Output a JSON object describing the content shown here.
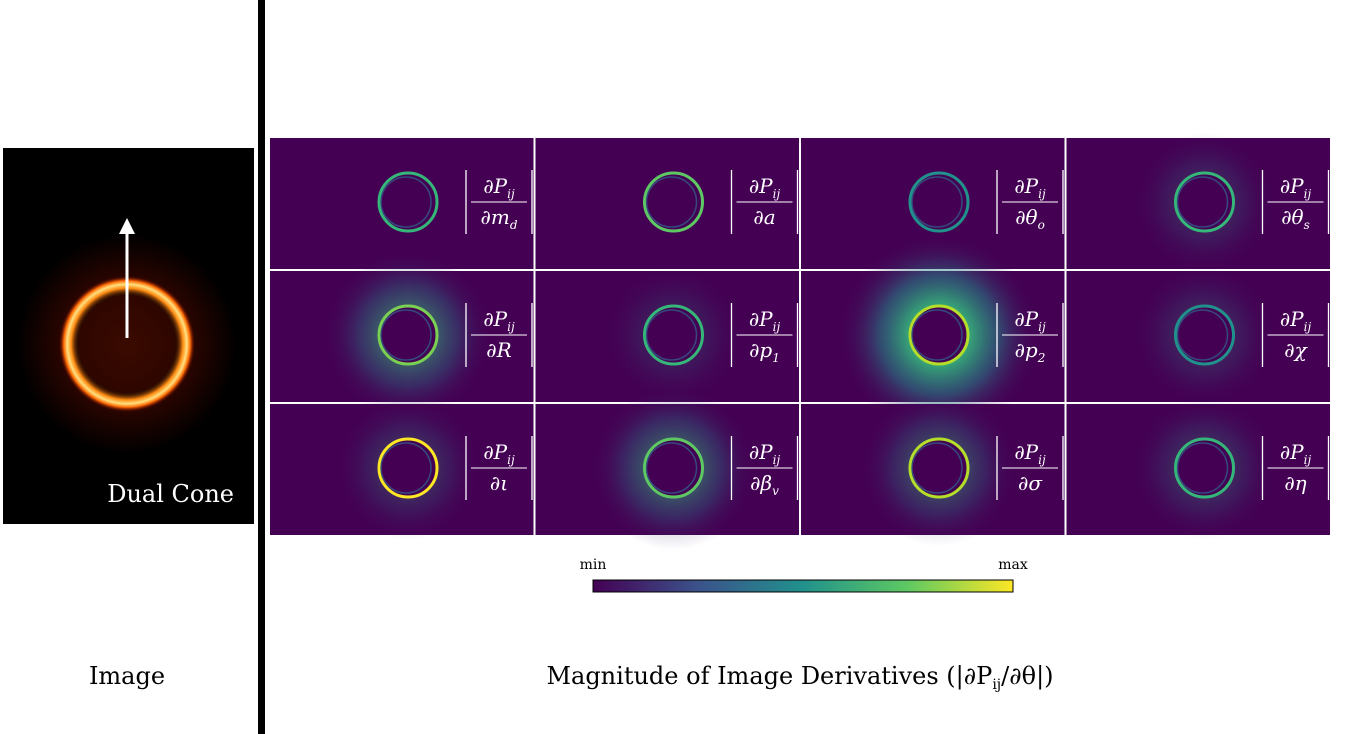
{
  "left_image": {
    "label": "Dual Cone",
    "caption": "Image"
  },
  "panels": {
    "numerator": {
      "text": "∂P",
      "sub": "ij"
    },
    "denominators": [
      {
        "text": "∂m",
        "sub": "d"
      },
      {
        "text": "∂a",
        "sub": null
      },
      {
        "text": "∂θ",
        "sub": "o"
      },
      {
        "text": "∂θ",
        "sub": "s"
      },
      {
        "text": "∂R",
        "sub": null
      },
      {
        "text": "∂p",
        "sub": "1"
      },
      {
        "text": "∂p",
        "sub": "2"
      },
      {
        "text": "∂χ",
        "sub": null
      },
      {
        "text": "∂ι",
        "sub": null
      },
      {
        "text": "∂β",
        "sub": "v"
      },
      {
        "text": "∂σ",
        "sub": null
      },
      {
        "text": "∂η",
        "sub": null
      }
    ]
  },
  "colorbar": {
    "min_label": "min",
    "max_label": "max"
  },
  "caption": {
    "before": "Magnitude of Image Derivatives (|∂P",
    "sub": "ij",
    "after": "/∂θ|)"
  }
}
